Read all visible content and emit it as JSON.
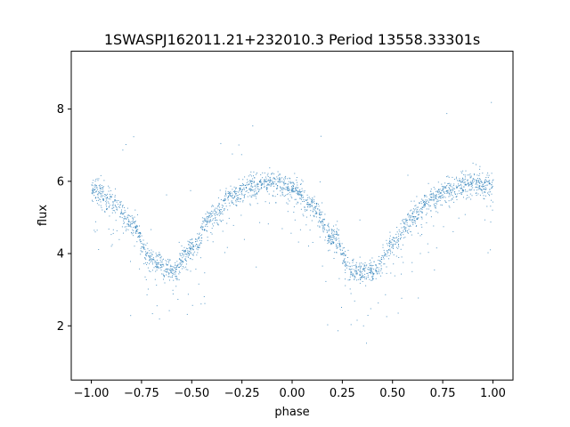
{
  "chart_data": {
    "type": "scatter",
    "title": "1SWASPJ162011.21+232010.3 Period 13558.33301s",
    "xlabel": "phase",
    "ylabel": "flux",
    "xlim": [
      -1.1,
      1.1
    ],
    "ylim": [
      0.5,
      9.6
    ],
    "xticks": [
      -1.0,
      -0.75,
      -0.5,
      -0.25,
      0.0,
      0.25,
      0.5,
      0.75,
      1.0
    ],
    "xtick_labels": [
      "−1.00",
      "−0.75",
      "−0.50",
      "−0.25",
      "0.00",
      "0.25",
      "0.50",
      "0.75",
      "1.00"
    ],
    "yticks": [
      2,
      4,
      6,
      8
    ],
    "ytick_labels": [
      "2",
      "4",
      "6",
      "8"
    ],
    "grid": false,
    "point_color": "#1f77b4",
    "model_curve": {
      "description_points_phase": [
        -1.0,
        -0.9,
        -0.8,
        -0.7,
        -0.6,
        -0.5,
        -0.4,
        -0.3,
        -0.2,
        -0.1,
        0.0,
        0.1,
        0.2,
        0.3,
        0.4,
        0.5,
        0.6,
        0.7,
        0.8,
        0.9,
        1.0
      ],
      "flux": [
        5.8,
        5.45,
        4.8,
        3.85,
        3.5,
        4.15,
        5.05,
        5.6,
        5.9,
        5.98,
        5.85,
        5.3,
        4.45,
        3.55,
        3.5,
        4.3,
        5.05,
        5.55,
        5.85,
        5.95,
        5.85
      ]
    }
  }
}
